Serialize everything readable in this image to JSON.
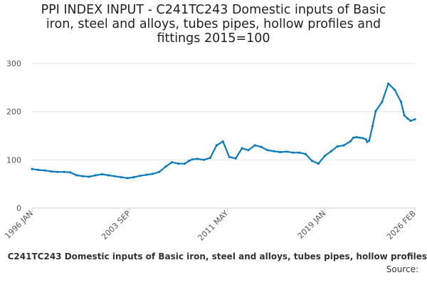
{
  "title_lines": [
    "PPI INDEX INPUT - C241TC243 Domestic inputs of Basic",
    "iron, steel and alloys, tubes pipes, hollow profiles and",
    "fittings 2015=100"
  ],
  "footer": {
    "series_text": "C241TC243 Domestic inputs of Basic iron, steel and alloys, tubes pipes, hollow profiles",
    "source_label": "Source:"
  },
  "colors": {
    "line": "#0a7bbd",
    "grid": "#e6e6e6",
    "axis": "#cccccc"
  },
  "chart_data": {
    "type": "line",
    "title": "PPI INDEX INPUT - C241TC243 Domestic inputs of Basic iron, steel and alloys, tubes pipes, hollow profiles and fittings 2015=100",
    "xlabel": "",
    "ylabel": "",
    "ylim": [
      0,
      300
    ],
    "yticks": [
      0,
      100,
      200,
      300
    ],
    "xlim": [
      "1996-01",
      "2026-02"
    ],
    "xticks": [
      "1996 JAN",
      "2003 SEP",
      "2011 MAY",
      "2019 JAN",
      "2026 FEB"
    ],
    "grid": true,
    "legend": "none",
    "series": [
      {
        "x": [
          "1996-01",
          "1996-07",
          "1997-01",
          "1997-07",
          "1998-01",
          "1998-07",
          "1999-01",
          "1999-07",
          "2000-01",
          "2000-07",
          "2001-01",
          "2001-07",
          "2002-01",
          "2002-07",
          "2003-01",
          "2003-07",
          "2004-01",
          "2004-07",
          "2005-01",
          "2005-07",
          "2006-01",
          "2006-07",
          "2007-01",
          "2007-07",
          "2008-01",
          "2008-05",
          "2008-08",
          "2009-01",
          "2009-07",
          "2010-01",
          "2010-07",
          "2011-01",
          "2011-07",
          "2012-01",
          "2012-07",
          "2013-01",
          "2013-07",
          "2014-01",
          "2014-07",
          "2015-01",
          "2015-07",
          "2016-01",
          "2016-07",
          "2017-01",
          "2017-07",
          "2018-01",
          "2018-07",
          "2019-01",
          "2019-07",
          "2020-01",
          "2020-07",
          "2021-01",
          "2021-04",
          "2021-07",
          "2021-10",
          "2022-01",
          "2022-04",
          "2022-05",
          "2022-07",
          "2022-10",
          "2023-01",
          "2023-07",
          "2024-01",
          "2024-07",
          "2025-01",
          "2025-04",
          "2025-07",
          "2025-10",
          "2026-02"
        ],
        "values": [
          81,
          79,
          78,
          76,
          75,
          75,
          74,
          68,
          66,
          65,
          68,
          70,
          68,
          66,
          64,
          62,
          64,
          67,
          69,
          71,
          75,
          86,
          95,
          92,
          92,
          98,
          101,
          102,
          100,
          104,
          130,
          138,
          106,
          103,
          124,
          120,
          130,
          127,
          120,
          118,
          116,
          117,
          115,
          115,
          112,
          98,
          92,
          108,
          118,
          128,
          130,
          138,
          146,
          147,
          146,
          145,
          142,
          137,
          140,
          170,
          201,
          220,
          258,
          245,
          220,
          192,
          186,
          181,
          184
        ]
      }
    ]
  }
}
